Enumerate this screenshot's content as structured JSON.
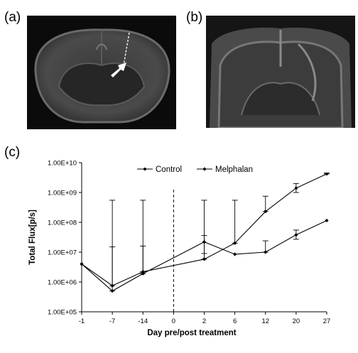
{
  "panels": {
    "a": {
      "label": "(a)"
    },
    "b": {
      "label": "(b)"
    },
    "c": {
      "label": "(c)"
    }
  },
  "chart_data": {
    "type": "line",
    "xlabel": "Day pre/post treatment",
    "ylabel": "Total Flux[p/s]",
    "y_scale": "log",
    "ylim": [
      100000,
      10000000000
    ],
    "y_ticks": [
      {
        "value": 100000,
        "label": "1.00E+05"
      },
      {
        "value": 1000000,
        "label": "1.00E+06"
      },
      {
        "value": 10000000,
        "label": "1.00E+07"
      },
      {
        "value": 100000000,
        "label": "1.00E+08"
      },
      {
        "value": 1000000000,
        "label": "1.00E+09"
      },
      {
        "value": 10000000000,
        "label": "1.00E+10"
      }
    ],
    "categories": [
      "-1",
      "-7",
      "-14",
      "0",
      "2",
      "6",
      "12",
      "20",
      "27"
    ],
    "treatment_marker": "0",
    "legend_position": "top",
    "series": [
      {
        "name": "Control",
        "x": [
          "-1",
          "-7",
          "-14",
          "2",
          "6",
          "12",
          "20",
          "27"
        ],
        "values": [
          4000000,
          750000,
          2200000,
          5800000,
          20000000,
          230000000,
          1400000000,
          4200000000
        ],
        "err_upper": [
          4000000,
          550000000,
          550000000,
          550000000,
          550000000,
          750000000,
          2000000000,
          4500000000
        ],
        "err_lower": [
          4000000,
          750000,
          2200000,
          5800000,
          20000000,
          230000000,
          1000000000,
          4200000000
        ]
      },
      {
        "name": "Melphalan",
        "x": [
          "-1",
          "-7",
          "-14",
          "2",
          "6",
          "12",
          "20",
          "27"
        ],
        "values": [
          4000000,
          500000,
          1900000,
          22000000,
          8500000,
          10000000,
          38000000,
          115000000
        ],
        "err_upper": [
          4000000,
          15000000,
          16000000,
          36000000,
          8500000,
          24000000,
          55000000,
          120000000
        ],
        "err_lower": [
          4000000,
          500000,
          1900000,
          9000000,
          8500000,
          10000000,
          27000000,
          115000000
        ]
      }
    ]
  }
}
